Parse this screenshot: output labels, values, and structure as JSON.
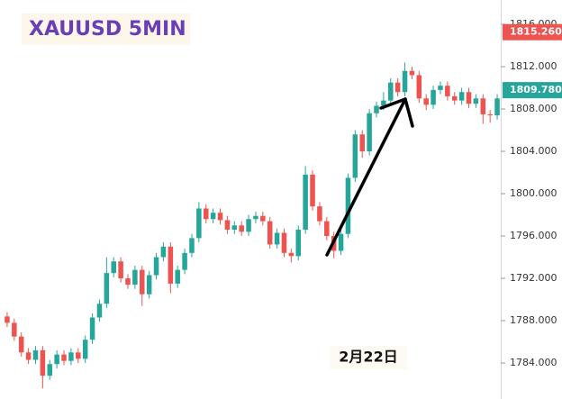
{
  "chart_data": {
    "type": "candlestick",
    "title": "XAUUSD 5MIN",
    "annotation": "2月22日",
    "up_color": "#26a69a",
    "down_color": "#ef5350",
    "ylim": [
      1780.6,
      1818.3
    ],
    "yticks": [
      {
        "value": 1784,
        "label": "1784.000"
      },
      {
        "value": 1788,
        "label": "1788.000"
      },
      {
        "value": 1792,
        "label": "1792.000"
      },
      {
        "value": 1796,
        "label": "1796.000"
      },
      {
        "value": 1800,
        "label": "1800.000"
      },
      {
        "value": 1804,
        "label": "1804.000"
      },
      {
        "value": 1808,
        "label": "1808.000"
      },
      {
        "value": 1812,
        "label": "1812.000"
      },
      {
        "value": 1816,
        "label": "1816.000"
      }
    ],
    "price_labels": [
      {
        "value": 1815.26,
        "label": "1815.260",
        "color": "#ef5350"
      },
      {
        "value": 1809.78,
        "label": "1809.780",
        "color": "#26a69a"
      }
    ],
    "open": [
      1788.4,
      1787.8,
      1786.5,
      1785.0,
      1784.3,
      1785.2,
      1782.8,
      1783.9,
      1784.8,
      1784.2,
      1785.0,
      1784.4,
      1786.2,
      1788.3,
      1789.6,
      1792.5,
      1793.6,
      1792.0,
      1791.4,
      1792.8,
      1790.5,
      1792.3,
      1794.0,
      1795.0,
      1791.5,
      1792.8,
      1794.4,
      1795.8,
      1798.6,
      1797.6,
      1798.2,
      1797.5,
      1796.6,
      1797.0,
      1796.4,
      1797.6,
      1797.9,
      1797.4,
      1795.2,
      1796.3,
      1794.4,
      1794.1,
      1796.6,
      1801.8,
      1798.8,
      1797.4,
      1796.0,
      1794.6,
      1796.2,
      1801.5,
      1805.6,
      1804.0,
      1807.6,
      1808.3,
      1808.8,
      1810.5,
      1809.6,
      1811.6,
      1811.2,
      1809.0,
      1808.4,
      1809.8,
      1810.2,
      1809.2,
      1808.8,
      1809.6,
      1808.5,
      1809.0,
      1807.5,
      1807.4
    ],
    "high": [
      1788.8,
      1788.2,
      1786.9,
      1785.4,
      1785.6,
      1785.6,
      1784.3,
      1785.2,
      1785.2,
      1785.4,
      1785.4,
      1786.6,
      1788.7,
      1790.0,
      1794.0,
      1794.0,
      1794.0,
      1792.4,
      1793.2,
      1793.2,
      1792.7,
      1794.4,
      1795.4,
      1795.4,
      1793.2,
      1794.8,
      1796.2,
      1799.2,
      1799.0,
      1798.6,
      1798.6,
      1797.9,
      1797.4,
      1797.4,
      1798.0,
      1798.3,
      1798.3,
      1797.8,
      1796.7,
      1796.7,
      1794.8,
      1797.0,
      1802.6,
      1802.2,
      1799.2,
      1797.8,
      1796.4,
      1796.6,
      1801.9,
      1806.0,
      1806.0,
      1808.0,
      1808.7,
      1809.6,
      1810.9,
      1810.9,
      1812.4,
      1812.0,
      1811.6,
      1809.4,
      1810.2,
      1810.6,
      1810.6,
      1809.6,
      1810.0,
      1810.0,
      1809.4,
      1809.4,
      1807.9,
      1809.4
    ],
    "low": [
      1787.4,
      1786.1,
      1784.6,
      1783.9,
      1783.9,
      1781.6,
      1782.4,
      1783.5,
      1783.8,
      1783.8,
      1784.0,
      1784.0,
      1785.8,
      1787.9,
      1789.2,
      1792.1,
      1791.6,
      1791.0,
      1791.0,
      1789.4,
      1790.1,
      1791.9,
      1793.6,
      1790.6,
      1791.1,
      1792.4,
      1794.0,
      1795.4,
      1797.2,
      1797.2,
      1797.1,
      1796.2,
      1796.2,
      1796.0,
      1796.0,
      1797.2,
      1797.0,
      1794.8,
      1794.8,
      1794.0,
      1793.5,
      1793.7,
      1796.2,
      1798.4,
      1797.0,
      1795.6,
      1793.9,
      1794.2,
      1795.8,
      1801.1,
      1803.4,
      1803.6,
      1807.2,
      1807.9,
      1808.4,
      1809.2,
      1809.2,
      1810.8,
      1808.6,
      1807.9,
      1808.0,
      1809.4,
      1808.8,
      1808.4,
      1808.4,
      1808.1,
      1808.1,
      1806.6,
      1806.7,
      1807.0
    ],
    "close": [
      1787.8,
      1786.5,
      1785.0,
      1784.3,
      1785.2,
      1782.8,
      1783.9,
      1784.8,
      1784.2,
      1785.0,
      1784.4,
      1786.2,
      1788.3,
      1789.6,
      1792.5,
      1793.6,
      1792.0,
      1791.4,
      1792.8,
      1790.5,
      1792.3,
      1794.0,
      1795.0,
      1791.5,
      1792.8,
      1794.4,
      1795.8,
      1798.6,
      1797.6,
      1798.2,
      1797.5,
      1796.6,
      1797.0,
      1796.4,
      1797.6,
      1797.9,
      1797.4,
      1795.2,
      1796.3,
      1794.4,
      1794.1,
      1796.6,
      1801.8,
      1798.8,
      1797.4,
      1796.0,
      1794.6,
      1796.2,
      1801.5,
      1805.6,
      1804.0,
      1807.6,
      1808.3,
      1808.8,
      1810.5,
      1809.6,
      1811.6,
      1811.2,
      1809.0,
      1808.4,
      1809.8,
      1810.2,
      1809.2,
      1808.8,
      1809.6,
      1808.5,
      1809.0,
      1807.5,
      1807.4,
      1809.0
    ]
  }
}
